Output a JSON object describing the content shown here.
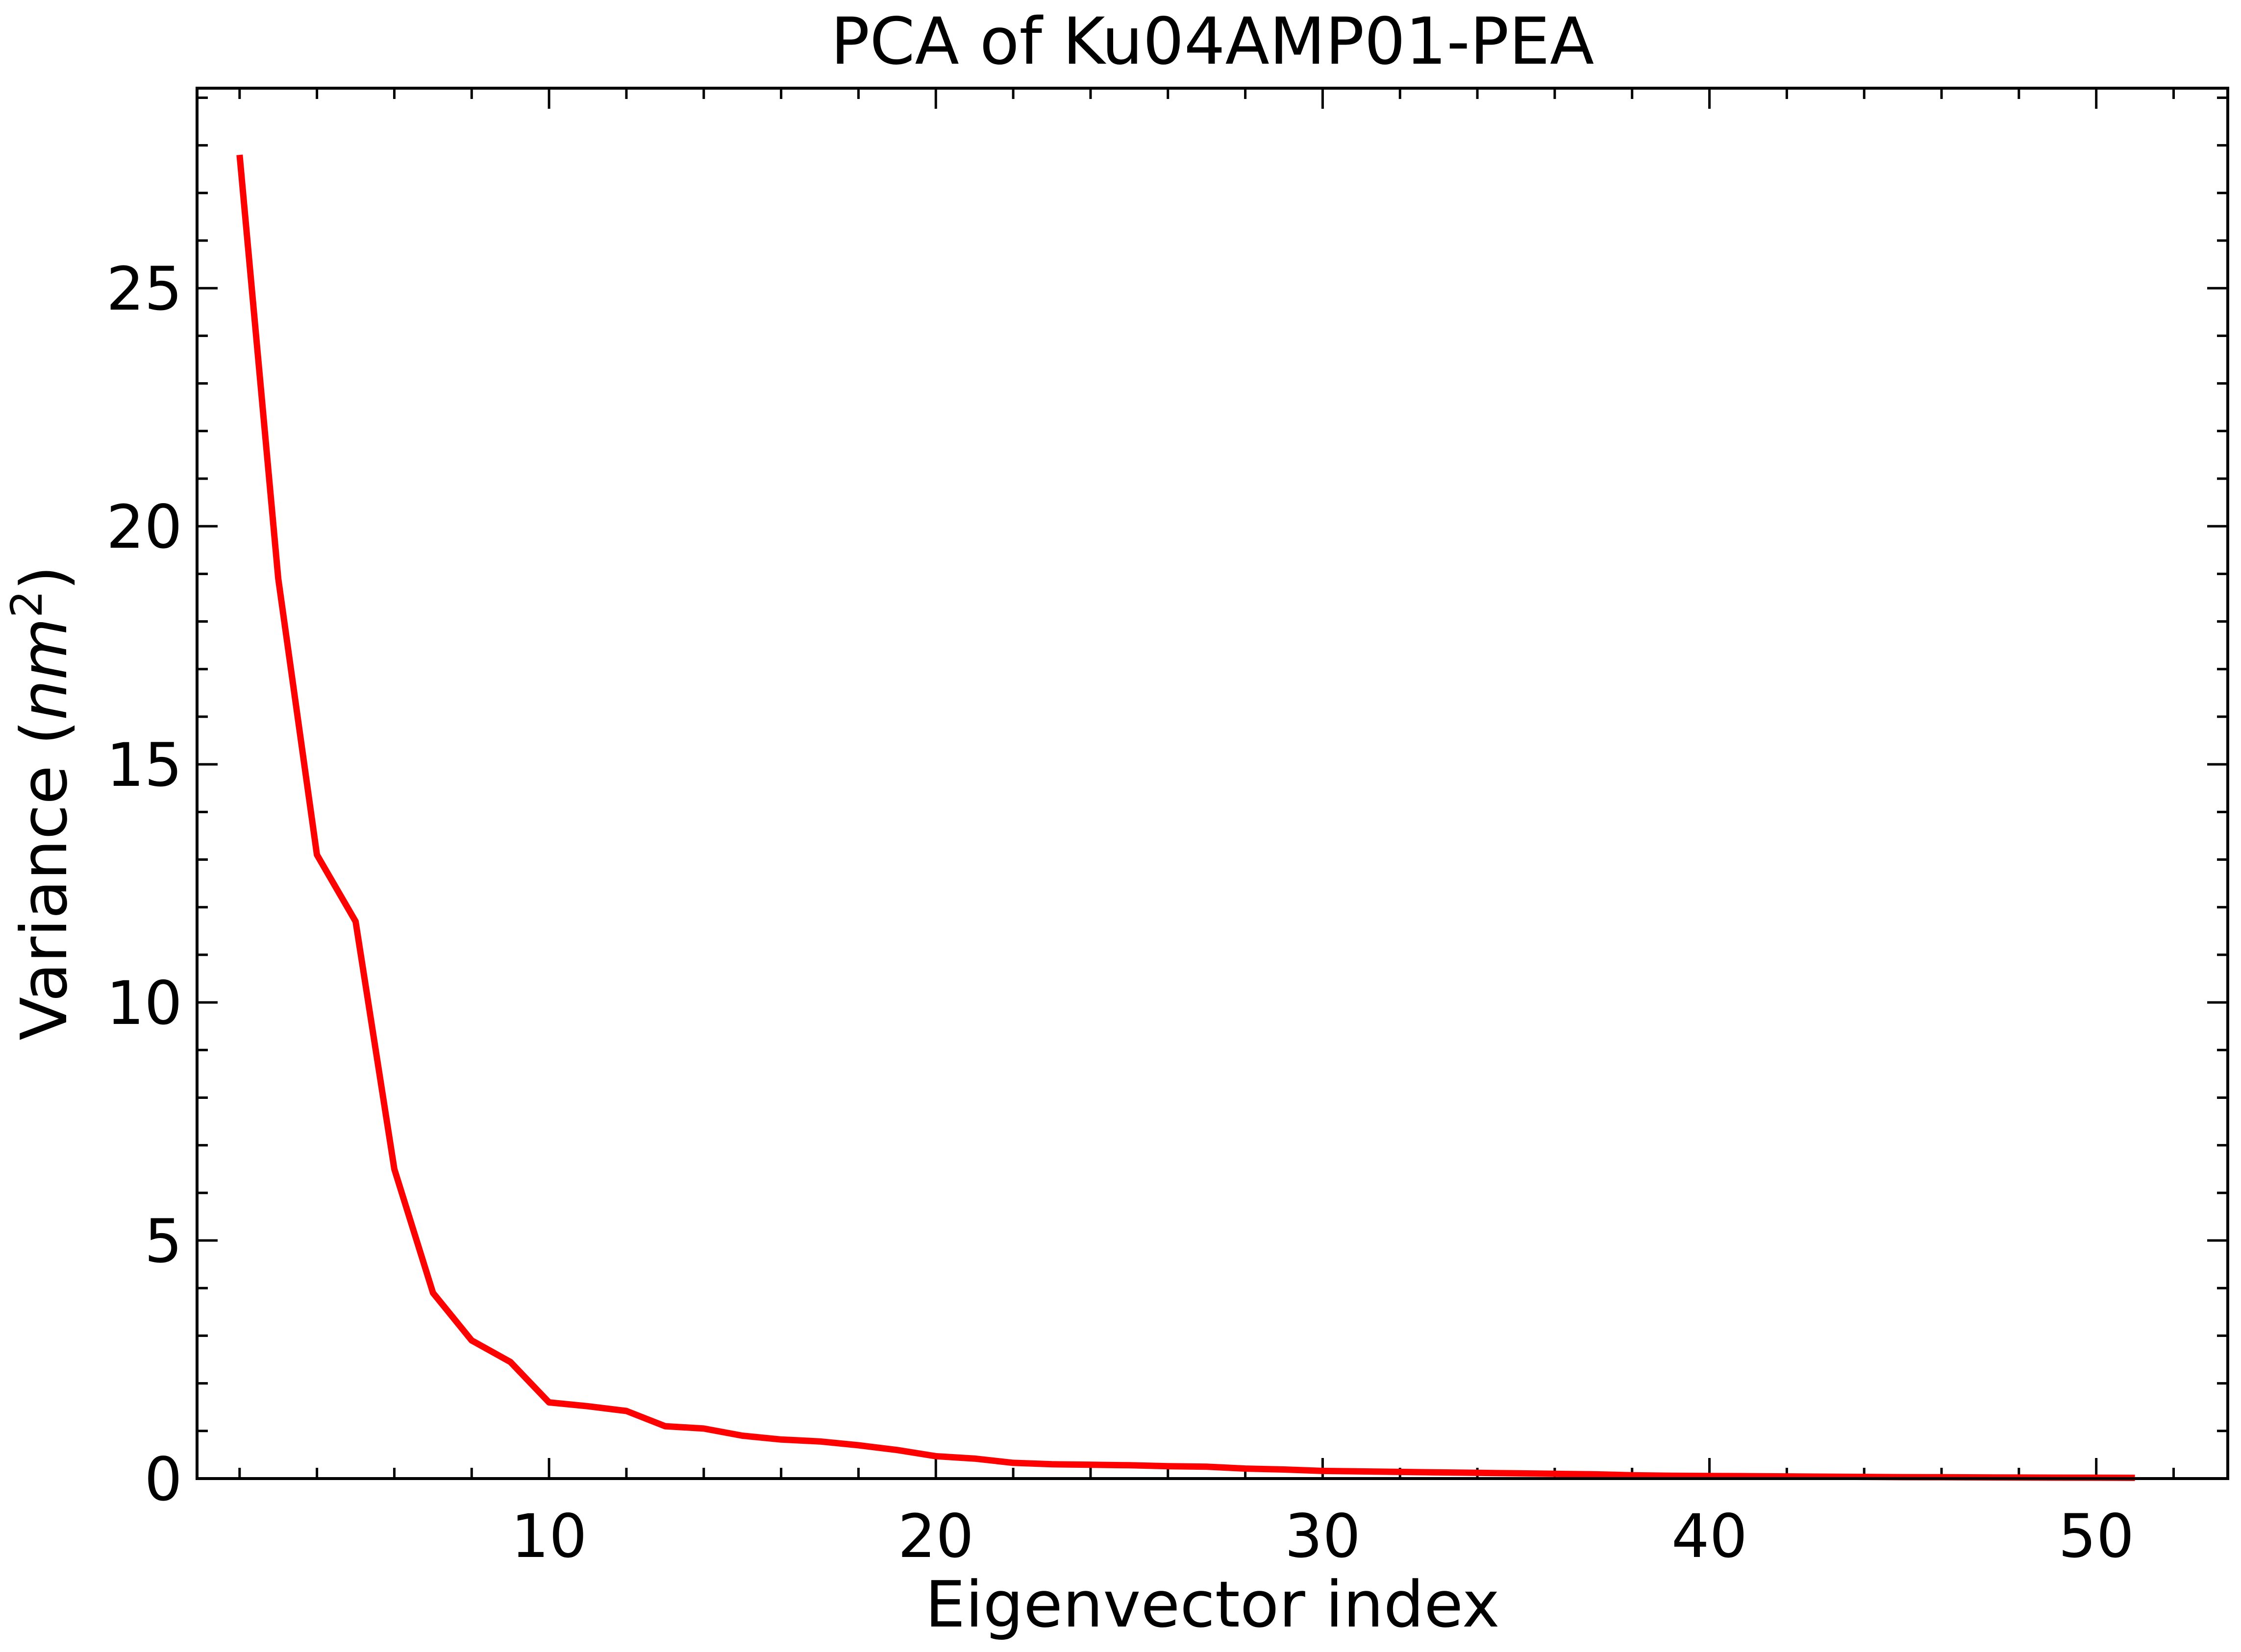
{
  "chart_data": {
    "type": "line",
    "title": "PCA of Ku04AMP01-PEA",
    "xlabel": "Eigenvector index",
    "ylabel": {
      "prefix": "Variance (",
      "unit": "nm",
      "superscript": "2",
      "suffix": ")"
    },
    "xlim": [
      0.9,
      53.4
    ],
    "ylim": [
      0,
      29.2
    ],
    "x_major_ticks": [
      10,
      20,
      30,
      40,
      50
    ],
    "x_tick_labels": [
      "10",
      "20",
      "30",
      "40",
      "50"
    ],
    "x_minor_step": 2,
    "y_major_ticks": [
      0,
      5,
      10,
      15,
      20,
      25
    ],
    "y_tick_labels": [
      "0",
      "5",
      "10",
      "15",
      "20",
      "25"
    ],
    "y_minor_step": 1,
    "grid": false,
    "legend": "none",
    "ticks_direction": "in",
    "mirror_ticks": true,
    "series": [
      {
        "color": "#ff0000",
        "x": [
          2,
          3,
          4,
          5,
          6,
          7,
          8,
          9,
          10,
          11,
          12,
          13,
          14,
          15,
          16,
          17,
          18,
          19,
          20,
          21,
          22,
          23,
          24,
          25,
          26,
          27,
          28,
          29,
          30,
          31,
          32,
          33,
          34,
          35,
          36,
          37,
          38,
          39,
          40,
          41,
          42,
          43,
          44,
          45,
          46,
          47,
          48,
          49,
          50,
          51
        ],
        "y": [
          27.8,
          18.9,
          13.1,
          11.7,
          6.5,
          3.9,
          2.9,
          2.45,
          1.6,
          1.52,
          1.42,
          1.1,
          1.05,
          0.9,
          0.82,
          0.78,
          0.7,
          0.6,
          0.47,
          0.42,
          0.33,
          0.3,
          0.29,
          0.28,
          0.26,
          0.25,
          0.21,
          0.19,
          0.16,
          0.15,
          0.14,
          0.13,
          0.12,
          0.11,
          0.1,
          0.09,
          0.07,
          0.06,
          0.055,
          0.05,
          0.045,
          0.04,
          0.035,
          0.03,
          0.028,
          0.025,
          0.022,
          0.02,
          0.018,
          0.015
        ]
      }
    ]
  }
}
